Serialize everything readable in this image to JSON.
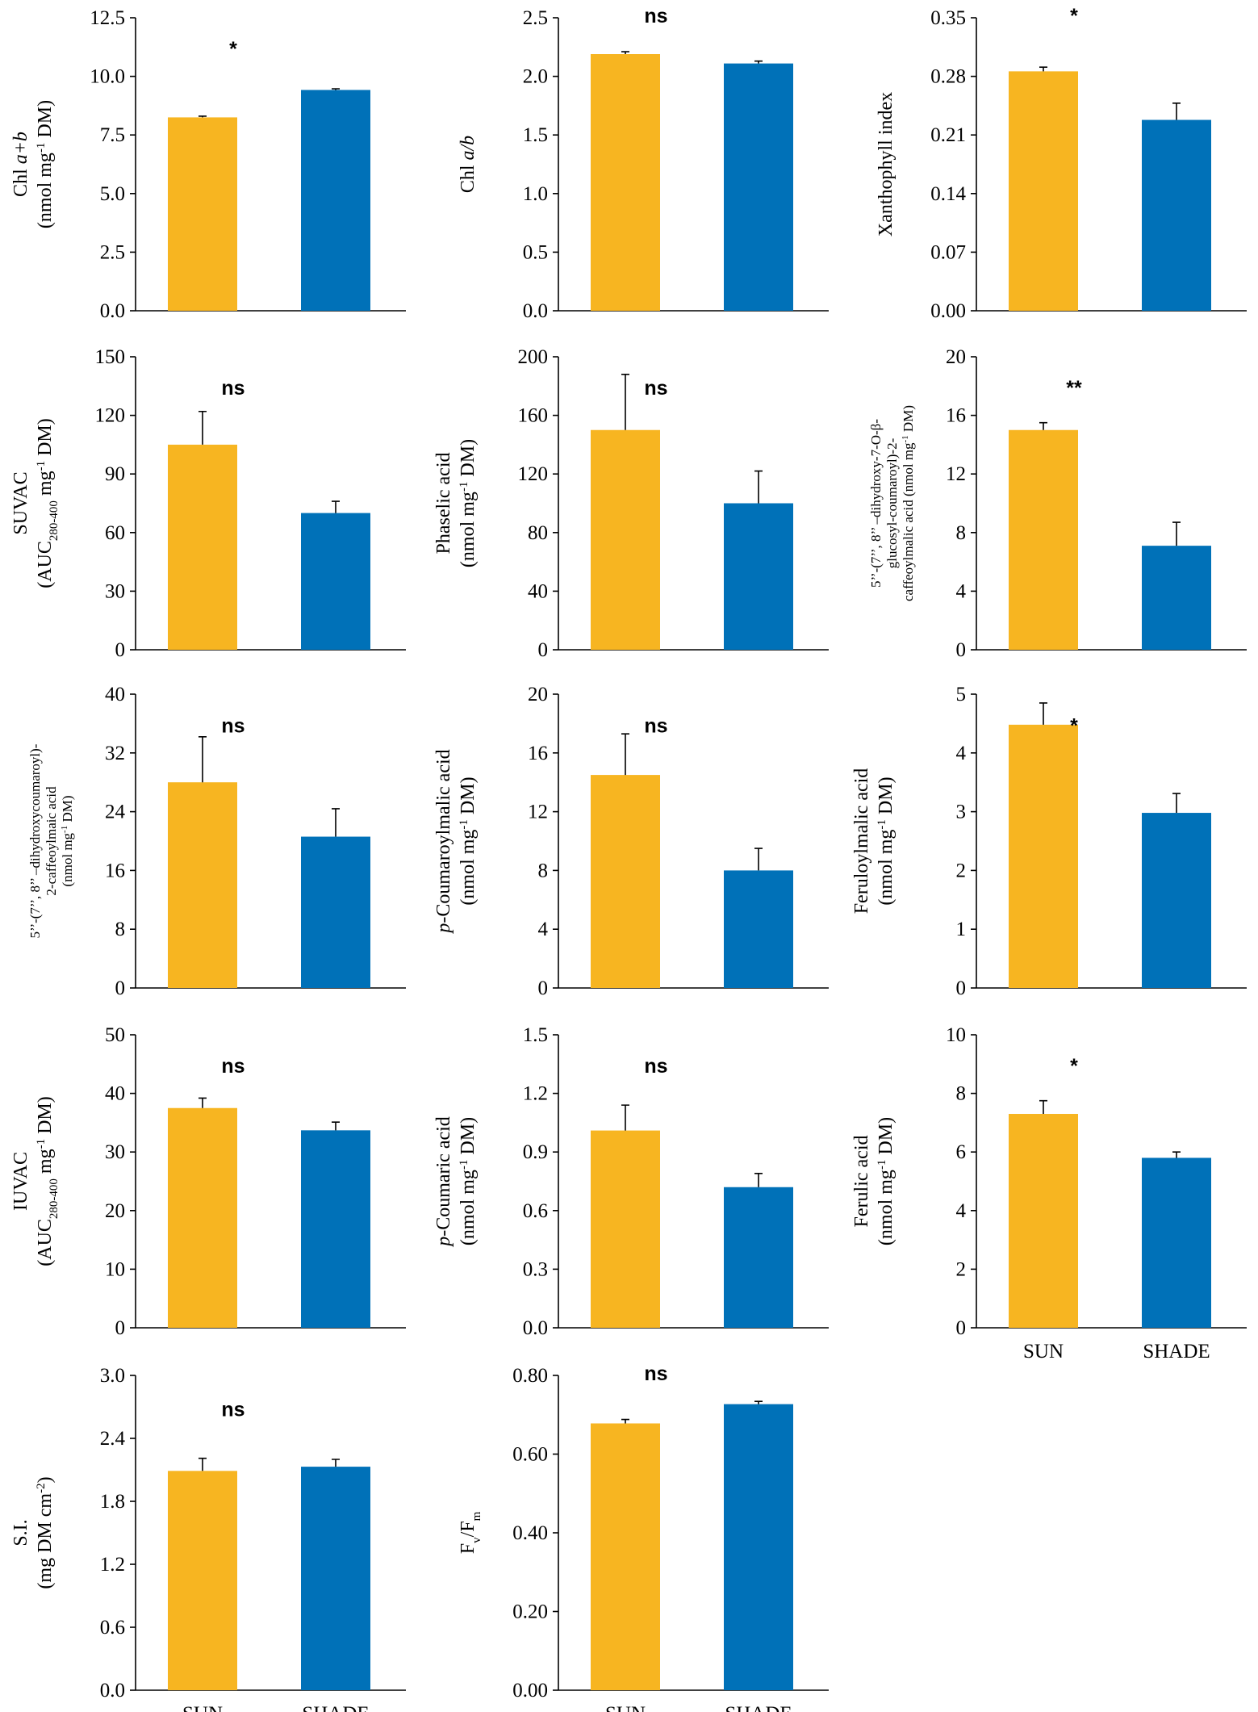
{
  "figure": {
    "categories": [
      "SUN",
      "SHADE"
    ],
    "colors": {
      "SUN": "#F7B521",
      "SHADE": "#0071B8"
    }
  },
  "chart_data": [
    {
      "type": "bar",
      "ylabel_lines": [
        [
          {
            "t": "Chl "
          },
          {
            "t": "a+b",
            "i": true
          }
        ],
        [
          {
            "t": "(nmol mg"
          },
          {
            "t": "-1",
            "sup": true
          },
          {
            "t": " DM)"
          }
        ]
      ],
      "categories": [
        "SUN",
        "SHADE"
      ],
      "values": [
        8.25,
        9.42
      ],
      "errors": [
        0.05,
        0.05
      ],
      "ylim": [
        0,
        12.5
      ],
      "yticks": [
        0,
        2.5,
        5.0,
        7.5,
        10.0,
        12.5
      ],
      "tick_labels": [
        "0.0",
        "2.5",
        "5.0",
        "7.5",
        "10.0",
        "12.5"
      ],
      "significance": "*",
      "sig_position": "mid",
      "show_xlabels": false
    },
    {
      "type": "bar",
      "ylabel_lines": [
        [
          {
            "t": "Chl "
          },
          {
            "t": "a/b",
            "i": true
          }
        ]
      ],
      "categories": [
        "SUN",
        "SHADE"
      ],
      "values": [
        2.19,
        2.11
      ],
      "errors": [
        0.02,
        0.02
      ],
      "ylim": [
        0,
        2.5
      ],
      "yticks": [
        0,
        0.5,
        1.0,
        1.5,
        2.0,
        2.5
      ],
      "tick_labels": [
        "0.0",
        "0.5",
        "1.0",
        "1.5",
        "2.0",
        "2.5"
      ],
      "significance": "ns",
      "sig_position": "top",
      "show_xlabels": false
    },
    {
      "type": "bar",
      "ylabel_lines": [
        [
          {
            "t": "Xanthophyll  index"
          }
        ]
      ],
      "categories": [
        "SUN",
        "SHADE"
      ],
      "values": [
        0.286,
        0.228
      ],
      "errors": [
        0.005,
        0.02
      ],
      "ylim": [
        0,
        0.35
      ],
      "yticks": [
        0,
        0.07,
        0.14,
        0.21,
        0.28,
        0.35
      ],
      "tick_labels": [
        "0.00",
        "0.07",
        "0.14",
        "0.21",
        "0.28",
        "0.35"
      ],
      "significance": "*",
      "sig_position": "top",
      "show_xlabels": false
    },
    {
      "type": "bar",
      "ylabel_lines": [
        [
          {
            "t": "SUVAC"
          }
        ],
        [
          {
            "t": "(AUC"
          },
          {
            "t": "280-400",
            "sub": true
          },
          {
            "t": "  mg"
          },
          {
            "t": "-1",
            "sup": true
          },
          {
            "t": " DM)"
          }
        ]
      ],
      "categories": [
        "SUN",
        "SHADE"
      ],
      "values": [
        105,
        70
      ],
      "errors": [
        17,
        6
      ],
      "ylim": [
        0,
        150
      ],
      "yticks": [
        0,
        30,
        60,
        90,
        120,
        150
      ],
      "tick_labels": [
        "0",
        "30",
        "60",
        "90",
        "120",
        "150"
      ],
      "significance": "ns",
      "sig_position": "mid",
      "show_xlabels": false
    },
    {
      "type": "bar",
      "ylabel_lines": [
        [
          {
            "t": "Phaselic acid"
          }
        ],
        [
          {
            "t": "(nmol mg"
          },
          {
            "t": "-1",
            "sup": true
          },
          {
            "t": " DM)"
          }
        ]
      ],
      "categories": [
        "SUN",
        "SHADE"
      ],
      "values": [
        150,
        100
      ],
      "errors": [
        38,
        22
      ],
      "ylim": [
        0,
        200
      ],
      "yticks": [
        0,
        40,
        80,
        120,
        160,
        200
      ],
      "tick_labels": [
        "0",
        "40",
        "80",
        "120",
        "160",
        "200"
      ],
      "significance": "ns",
      "sig_position": "mid",
      "show_xlabels": false
    },
    {
      "type": "bar",
      "ylabel_small": true,
      "ylabel_lines": [
        [
          {
            "t": "5’’-(7’’, 8’’ –dihydroxy-7-O-β-"
          }
        ],
        [
          {
            "t": "glucosyl-coumaroyl)-2-"
          }
        ],
        [
          {
            "t": "caffeoylmalic acid (nmol mg"
          },
          {
            "t": "-1",
            "sup": true
          },
          {
            "t": " DM)"
          }
        ]
      ],
      "categories": [
        "SUN",
        "SHADE"
      ],
      "values": [
        15.0,
        7.1
      ],
      "errors": [
        0.5,
        1.6
      ],
      "ylim": [
        0,
        20
      ],
      "yticks": [
        0,
        4,
        8,
        12,
        16,
        20
      ],
      "tick_labels": [
        "0",
        "4",
        "8",
        "12",
        "16",
        "20"
      ],
      "significance": "**",
      "sig_position": "mid",
      "show_xlabels": false
    },
    {
      "type": "bar",
      "ylabel_small": true,
      "ylabel_lines": [
        [
          {
            "t": "5’’-(7’’, 8’’ –dihydroxycoumaroyl)-"
          }
        ],
        [
          {
            "t": "2-caffeoylmaic acid"
          }
        ],
        [
          {
            "t": "(nmol mg"
          },
          {
            "t": "-1",
            "sup": true
          },
          {
            "t": " DM)"
          }
        ]
      ],
      "categories": [
        "SUN",
        "SHADE"
      ],
      "values": [
        28.0,
        20.6
      ],
      "errors": [
        6.2,
        3.8
      ],
      "ylim": [
        0,
        40
      ],
      "yticks": [
        0,
        8,
        16,
        24,
        32,
        40
      ],
      "tick_labels": [
        "0",
        "8",
        "16",
        "24",
        "32",
        "40"
      ],
      "significance": "ns",
      "sig_position": "mid",
      "show_xlabels": false
    },
    {
      "type": "bar",
      "ylabel_lines": [
        [
          {
            "t": "p",
            "i": true
          },
          {
            "t": "-Coumaroylmalic acid"
          }
        ],
        [
          {
            "t": "(nmol mg"
          },
          {
            "t": "-1",
            "sup": true
          },
          {
            "t": " DM)"
          }
        ]
      ],
      "categories": [
        "SUN",
        "SHADE"
      ],
      "values": [
        14.5,
        8.0
      ],
      "errors": [
        2.8,
        1.5
      ],
      "ylim": [
        0,
        20
      ],
      "yticks": [
        0,
        4,
        8,
        12,
        16,
        20
      ],
      "tick_labels": [
        "0",
        "4",
        "8",
        "12",
        "16",
        "20"
      ],
      "significance": "ns",
      "sig_position": "mid",
      "show_xlabels": false
    },
    {
      "type": "bar",
      "ylabel_lines": [
        [
          {
            "t": "Feruloylmalic acid"
          }
        ],
        [
          {
            "t": "(nmol mg"
          },
          {
            "t": "-1",
            "sup": true
          },
          {
            "t": " DM)"
          }
        ]
      ],
      "categories": [
        "SUN",
        "SHADE"
      ],
      "values": [
        4.48,
        2.98
      ],
      "errors": [
        0.37,
        0.33
      ],
      "ylim": [
        0,
        5
      ],
      "yticks": [
        0,
        1,
        2,
        3,
        4,
        5
      ],
      "tick_labels": [
        "0",
        "1",
        "2",
        "3",
        "4",
        "5"
      ],
      "significance": "*",
      "sig_position": "mid",
      "show_xlabels": false
    },
    {
      "type": "bar",
      "ylabel_lines": [
        [
          {
            "t": "IUVAC"
          }
        ],
        [
          {
            "t": "(AUC"
          },
          {
            "t": "280-400",
            "sub": true
          },
          {
            "t": " mg"
          },
          {
            "t": "-1",
            "sup": true
          },
          {
            "t": " DM)"
          }
        ]
      ],
      "categories": [
        "SUN",
        "SHADE"
      ],
      "values": [
        37.5,
        33.7
      ],
      "errors": [
        1.7,
        1.4
      ],
      "ylim": [
        0,
        50
      ],
      "yticks": [
        0,
        10,
        20,
        30,
        40,
        50
      ],
      "tick_labels": [
        "0",
        "10",
        "20",
        "30",
        "40",
        "50"
      ],
      "significance": "ns",
      "sig_position": "mid",
      "show_xlabels": false
    },
    {
      "type": "bar",
      "ylabel_lines": [
        [
          {
            "t": "p",
            "i": true
          },
          {
            "t": "-Coumaric acid"
          }
        ],
        [
          {
            "t": "(nmol mg"
          },
          {
            "t": "-1",
            "sup": true
          },
          {
            "t": " DM)"
          }
        ]
      ],
      "categories": [
        "SUN",
        "SHADE"
      ],
      "values": [
        1.01,
        0.72
      ],
      "errors": [
        0.13,
        0.07
      ],
      "ylim": [
        0,
        1.5
      ],
      "yticks": [
        0,
        0.3,
        0.6,
        0.9,
        1.2,
        1.5
      ],
      "tick_labels": [
        "0.0",
        "0.3",
        "0.6",
        "0.9",
        "1.2",
        "1.5"
      ],
      "significance": "ns",
      "sig_position": "mid",
      "show_xlabels": false
    },
    {
      "type": "bar",
      "ylabel_lines": [
        [
          {
            "t": "Ferulic acid"
          }
        ],
        [
          {
            "t": "(nmol mg"
          },
          {
            "t": "-1",
            "sup": true
          },
          {
            "t": " DM)"
          }
        ]
      ],
      "categories": [
        "SUN",
        "SHADE"
      ],
      "values": [
        7.3,
        5.8
      ],
      "errors": [
        0.45,
        0.2
      ],
      "ylim": [
        0,
        10
      ],
      "yticks": [
        0,
        2,
        4,
        6,
        8,
        10
      ],
      "tick_labels": [
        "0",
        "2",
        "4",
        "6",
        "8",
        "10"
      ],
      "significance": "*",
      "sig_position": "mid",
      "show_xlabels": true
    },
    {
      "type": "bar",
      "ylabel_lines": [
        [
          {
            "t": "S.I."
          }
        ],
        [
          {
            "t": "(mg DM cm"
          },
          {
            "t": "-2",
            "sup": true
          },
          {
            "t": ")"
          }
        ]
      ],
      "categories": [
        "SUN",
        "SHADE"
      ],
      "values": [
        2.09,
        2.13
      ],
      "errors": [
        0.12,
        0.07
      ],
      "ylim": [
        0,
        3.0
      ],
      "yticks": [
        0,
        0.6,
        1.2,
        1.8,
        2.4,
        3.0
      ],
      "tick_labels": [
        "0.0",
        "0.6",
        "1.2",
        "1.8",
        "2.4",
        "3.0"
      ],
      "significance": "ns",
      "sig_position": "mid",
      "show_xlabels": true
    },
    {
      "type": "bar",
      "ylabel_lines": [
        [
          {
            "t": "F"
          },
          {
            "t": "v",
            "sub": true
          },
          {
            "t": "/F"
          },
          {
            "t": "m",
            "sub": true
          }
        ]
      ],
      "categories": [
        "SUN",
        "SHADE"
      ],
      "values": [
        0.678,
        0.727
      ],
      "errors": [
        0.01,
        0.007
      ],
      "ylim": [
        0,
        0.8
      ],
      "yticks": [
        0,
        0.2,
        0.4,
        0.6,
        0.8
      ],
      "tick_labels": [
        "0.00",
        "0.20",
        "0.40",
        "0.60",
        "0.80"
      ],
      "significance": "ns",
      "sig_position": "top",
      "show_xlabels": true
    }
  ]
}
